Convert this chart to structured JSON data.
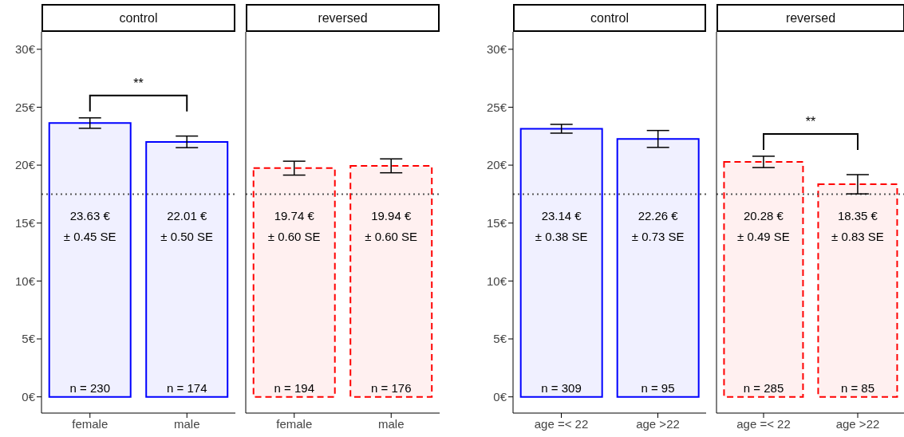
{
  "chart_data": [
    {
      "type": "bar",
      "title": "control",
      "categories": [
        "female",
        "male"
      ],
      "values": [
        23.63,
        22.01
      ],
      "errors": [
        0.45,
        0.5
      ],
      "value_labels": [
        "23.63 €\n± 0.45 SE",
        "22.01 €\n± 0.50 SE"
      ],
      "color": "#0000ff",
      "line_style": "solid",
      "ylim": [
        -1.4,
        31.5
      ],
      "yticks": [
        {
          "value": 0,
          "label": "0€"
        },
        {
          "value": 5,
          "label": "5€"
        },
        {
          "value": 10,
          "label": "10€"
        },
        {
          "value": 15,
          "label": "15€"
        },
        {
          "value": 20,
          "label": "20€"
        },
        {
          "value": 25,
          "label": "25€"
        },
        {
          "value": 30,
          "label": "30€"
        }
      ],
      "ref_lines": [
        {
          "axis": "y",
          "value": 17.5,
          "color": "#555555",
          "line_style": "dotted"
        }
      ],
      "annotations": [
        "**",
        {
          "text": "n = 230",
          "x": "female",
          "y": 0
        },
        {
          "text": "n = 174",
          "x": "male",
          "y": 0
        }
      ]
    },
    {
      "type": "bar",
      "title": "reversed",
      "categories": [
        "female",
        "male"
      ],
      "values": [
        19.74,
        19.94
      ],
      "errors": [
        0.6,
        0.6
      ],
      "value_labels": [
        "19.74 €\n± 0.60 SE",
        "19.94 €\n± 0.60 SE"
      ],
      "color": "#ff0000",
      "line_style": "dashed",
      "ylim": [
        -1.4,
        31.5
      ],
      "tick_labels": "x",
      "ref_lines": [
        {
          "axis": "y",
          "value": 17.5,
          "color": "#555555",
          "line_style": "dotted"
        }
      ],
      "annotations": [
        {
          "text": "n = 194",
          "x": "female",
          "y": 0
        },
        {
          "text": "n = 176",
          "x": "male",
          "y": 0
        }
      ]
    },
    {
      "type": "bar",
      "title": "control",
      "categories": [
        "age =< 22",
        "age >22"
      ],
      "values": [
        23.14,
        22.26
      ],
      "errors": [
        0.38,
        0.73
      ],
      "value_labels": [
        "23.14 €\n± 0.38 SE",
        "22.26 €\n± 0.73 SE"
      ],
      "color": "#0000ff",
      "line_style": "solid",
      "ylim": [
        -1.4,
        31.5
      ],
      "yticks": [
        {
          "value": 0,
          "label": "0€"
        },
        {
          "value": 5,
          "label": "5€"
        },
        {
          "value": 10,
          "label": "10€"
        },
        {
          "value": 15,
          "label": "15€"
        },
        {
          "value": 20,
          "label": "20€"
        },
        {
          "value": 25,
          "label": "25€"
        },
        {
          "value": 30,
          "label": "30€"
        }
      ],
      "ref_lines": [
        {
          "axis": "y",
          "value": 17.5,
          "color": "#555555",
          "line_style": "dotted"
        }
      ],
      "annotations": [
        {
          "text": "n = 309",
          "x": "age =< 22",
          "y": 0
        },
        {
          "text": "n = 95",
          "x": "age >22",
          "y": 0
        }
      ]
    },
    {
      "type": "bar",
      "title": "reversed",
      "categories": [
        "age =< 22",
        "age >22"
      ],
      "values": [
        20.28,
        18.35
      ],
      "errors": [
        0.49,
        0.83
      ],
      "value_labels": [
        "20.28 €\n± 0.49 SE",
        "18.35 €\n± 0.83 SE"
      ],
      "color": "#ff0000",
      "line_style": "dashed",
      "ylim": [
        -1.4,
        31.5
      ],
      "tick_labels": "x",
      "ref_lines": [
        {
          "axis": "y",
          "value": 17.5,
          "color": "#555555",
          "line_style": "dotted"
        }
      ],
      "annotations": [
        "**",
        {
          "text": "n = 285",
          "x": "age =< 22",
          "y": 0
        },
        {
          "text": "n = 85",
          "x": "age >22",
          "y": 0
        }
      ]
    }
  ]
}
